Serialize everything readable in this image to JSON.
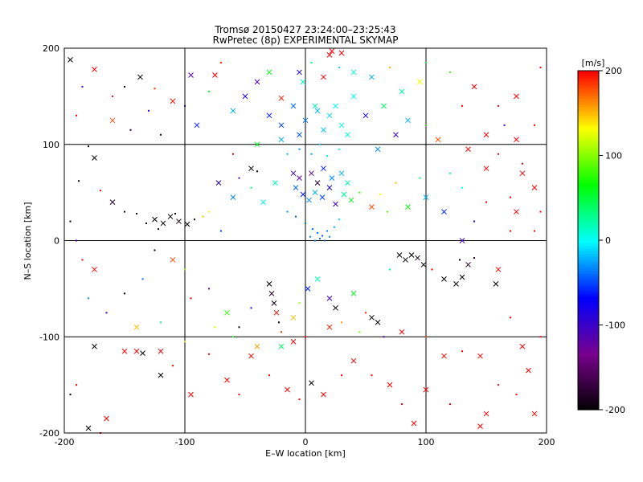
{
  "chart_data": {
    "type": "scatter",
    "title": "Tromsø 20150427 23:24:00–23:25:43",
    "subtitle": "RwPretec (8p) EXPERIMENTAL SKYMAP",
    "xlabel": "E–W location [km]",
    "ylabel": "N–S location [km]",
    "xlim": [
      -200,
      200
    ],
    "ylim": [
      -200,
      200
    ],
    "xticks": [
      -200,
      -100,
      0,
      100,
      200
    ],
    "yticks": [
      -200,
      -100,
      0,
      100,
      200
    ],
    "grid": true,
    "colorbar": {
      "unit_label": "[m/s]",
      "min": -200,
      "max": 200,
      "ticks": [
        -200,
        -100,
        0,
        100,
        200
      ],
      "colormap": "rainbow: black-purple-blue-cyan-green-yellow-red"
    },
    "markers": {
      "large": "x",
      "small": "dot"
    },
    "points": [
      [
        -195,
        188,
        -210,
        1
      ],
      [
        -175,
        178,
        200,
        1
      ],
      [
        -137,
        170,
        -220,
        1
      ],
      [
        -125,
        158,
        190,
        0
      ],
      [
        -110,
        145,
        195,
        1
      ],
      [
        -160,
        125,
        180,
        1
      ],
      [
        -145,
        115,
        -180,
        0
      ],
      [
        -130,
        135,
        -100,
        0
      ],
      [
        -180,
        98,
        -200,
        0
      ],
      [
        -175,
        86,
        -210,
        1
      ],
      [
        -188,
        62,
        -200,
        0
      ],
      [
        -170,
        52,
        200,
        0
      ],
      [
        -160,
        40,
        -180,
        1
      ],
      [
        -125,
        22,
        -220,
        1
      ],
      [
        -118,
        18,
        -210,
        1
      ],
      [
        -112,
        25,
        -200,
        1
      ],
      [
        -105,
        20,
        -190,
        1
      ],
      [
        -98,
        17,
        -210,
        1
      ],
      [
        -92,
        22,
        -200,
        0
      ],
      [
        -132,
        18,
        -210,
        0
      ],
      [
        -140,
        28,
        -180,
        0
      ],
      [
        -150,
        30,
        -190,
        0
      ],
      [
        -122,
        12,
        -200,
        0
      ],
      [
        -108,
        28,
        -220,
        0
      ],
      [
        -85,
        25,
        150,
        0
      ],
      [
        -80,
        30,
        130,
        0
      ],
      [
        -70,
        10,
        -50,
        0
      ],
      [
        -60,
        45,
        -30,
        1
      ],
      [
        -72,
        60,
        -90,
        1
      ],
      [
        -55,
        65,
        -120,
        0
      ],
      [
        -45,
        75,
        -210,
        1
      ],
      [
        -40,
        72,
        -200,
        0
      ],
      [
        -90,
        120,
        -60,
        1
      ],
      [
        -100,
        140,
        -80,
        0
      ],
      [
        -80,
        155,
        60,
        0
      ],
      [
        -60,
        135,
        -20,
        1
      ],
      [
        -50,
        150,
        -90,
        1
      ],
      [
        -40,
        165,
        -110,
        1
      ],
      [
        -30,
        175,
        60,
        1
      ],
      [
        -20,
        148,
        190,
        1
      ],
      [
        -95,
        172,
        -120,
        1
      ],
      [
        -75,
        172,
        200,
        1
      ],
      [
        -120,
        110,
        -180,
        0
      ],
      [
        -70,
        185,
        190,
        0
      ],
      [
        -30,
        130,
        -60,
        1
      ],
      [
        -20,
        120,
        -50,
        1
      ],
      [
        -10,
        140,
        -40,
        1
      ],
      [
        -5,
        110,
        -45,
        1
      ],
      [
        0,
        125,
        -35,
        1
      ],
      [
        10,
        135,
        -20,
        1
      ],
      [
        15,
        115,
        -15,
        1
      ],
      [
        20,
        130,
        -10,
        1
      ],
      [
        25,
        140,
        0,
        1
      ],
      [
        30,
        120,
        5,
        1
      ],
      [
        35,
        110,
        10,
        1
      ],
      [
        40,
        150,
        0,
        1
      ],
      [
        -15,
        90,
        -20,
        0
      ],
      [
        -5,
        95,
        -30,
        0
      ],
      [
        5,
        90,
        -25,
        0
      ],
      [
        12,
        100,
        -15,
        0
      ],
      [
        18,
        88,
        -5,
        0
      ],
      [
        28,
        95,
        10,
        0
      ],
      [
        8,
        140,
        20,
        1
      ],
      [
        -2,
        165,
        20,
        1
      ],
      [
        5,
        185,
        40,
        0
      ],
      [
        -5,
        175,
        -80,
        1
      ],
      [
        15,
        170,
        200,
        1
      ],
      [
        20,
        193,
        200,
        1
      ],
      [
        22,
        197,
        200,
        1
      ],
      [
        28,
        180,
        -10,
        0
      ],
      [
        30,
        195,
        200,
        1
      ],
      [
        40,
        175,
        10,
        1
      ],
      [
        55,
        170,
        -20,
        1
      ],
      [
        70,
        180,
        150,
        0
      ],
      [
        80,
        155,
        20,
        1
      ],
      [
        95,
        165,
        130,
        1
      ],
      [
        100,
        185,
        50,
        0
      ],
      [
        120,
        175,
        80,
        0
      ],
      [
        140,
        160,
        200,
        1
      ],
      [
        160,
        140,
        200,
        0
      ],
      [
        175,
        105,
        200,
        1
      ],
      [
        180,
        80,
        200,
        0
      ],
      [
        190,
        55,
        200,
        1
      ],
      [
        195,
        30,
        200,
        0
      ],
      [
        170,
        45,
        200,
        0
      ],
      [
        150,
        75,
        200,
        1
      ],
      [
        160,
        90,
        200,
        0
      ],
      [
        135,
        95,
        200,
        1
      ],
      [
        -8,
        55,
        -40,
        1
      ],
      [
        -2,
        48,
        -60,
        1
      ],
      [
        3,
        42,
        -30,
        1
      ],
      [
        8,
        50,
        -20,
        1
      ],
      [
        14,
        45,
        -50,
        1
      ],
      [
        20,
        55,
        -80,
        1
      ],
      [
        25,
        38,
        -100,
        1
      ],
      [
        32,
        48,
        30,
        1
      ],
      [
        38,
        42,
        60,
        1
      ],
      [
        45,
        50,
        80,
        0
      ],
      [
        -15,
        30,
        -30,
        0
      ],
      [
        -8,
        25,
        -45,
        0
      ],
      [
        0,
        18,
        -35,
        0
      ],
      [
        6,
        12,
        -40,
        0
      ],
      [
        10,
        8,
        -35,
        0
      ],
      [
        14,
        5,
        -45,
        0
      ],
      [
        18,
        10,
        -30,
        0
      ],
      [
        12,
        2,
        -40,
        0
      ],
      [
        8,
        0,
        -35,
        0
      ],
      [
        4,
        4,
        -30,
        0
      ],
      [
        16,
        0,
        -40,
        0
      ],
      [
        20,
        4,
        -30,
        0
      ],
      [
        24,
        14,
        -20,
        0
      ],
      [
        28,
        22,
        -10,
        0
      ],
      [
        -25,
        60,
        20,
        1
      ],
      [
        -35,
        40,
        10,
        1
      ],
      [
        -45,
        55,
        40,
        0
      ],
      [
        55,
        35,
        180,
        1
      ],
      [
        62,
        48,
        130,
        0
      ],
      [
        68,
        30,
        90,
        0
      ],
      [
        75,
        60,
        150,
        0
      ],
      [
        85,
        35,
        70,
        1
      ],
      [
        95,
        65,
        40,
        0
      ],
      [
        100,
        45,
        -20,
        1
      ],
      [
        120,
        70,
        30,
        0
      ],
      [
        115,
        30,
        -60,
        1
      ],
      [
        130,
        55,
        0,
        0
      ],
      [
        140,
        20,
        -70,
        0
      ],
      [
        130,
        0,
        -100,
        1
      ],
      [
        -125,
        -10,
        -200,
        0
      ],
      [
        -110,
        -20,
        180,
        1
      ],
      [
        -100,
        -30,
        100,
        0
      ],
      [
        -135,
        -40,
        -40,
        0
      ],
      [
        -150,
        -55,
        -200,
        0
      ],
      [
        -175,
        -30,
        200,
        1
      ],
      [
        -180,
        -60,
        -30,
        0
      ],
      [
        -165,
        -75,
        -100,
        0
      ],
      [
        -140,
        -90,
        150,
        1
      ],
      [
        -120,
        -85,
        30,
        0
      ],
      [
        -95,
        -60,
        200,
        0
      ],
      [
        -80,
        -50,
        -120,
        0
      ],
      [
        -65,
        -75,
        80,
        1
      ],
      [
        -55,
        -90,
        -200,
        0
      ],
      [
        -45,
        -70,
        -80,
        0
      ],
      [
        -30,
        -45,
        -200,
        1
      ],
      [
        -28,
        -55,
        -180,
        1
      ],
      [
        -26,
        -65,
        -190,
        1
      ],
      [
        -24,
        -75,
        200,
        1
      ],
      [
        -22,
        -85,
        -200,
        0
      ],
      [
        -20,
        -95,
        190,
        0
      ],
      [
        -10,
        -80,
        150,
        1
      ],
      [
        -5,
        -65,
        100,
        0
      ],
      [
        2,
        -50,
        -60,
        1
      ],
      [
        10,
        -40,
        20,
        1
      ],
      [
        20,
        -60,
        -100,
        1
      ],
      [
        25,
        -70,
        -200,
        1
      ],
      [
        30,
        -85,
        160,
        0
      ],
      [
        40,
        -55,
        60,
        1
      ],
      [
        50,
        -75,
        190,
        0
      ],
      [
        60,
        -85,
        -200,
        1
      ],
      [
        70,
        -30,
        20,
        0
      ],
      [
        78,
        -15,
        -210,
        1
      ],
      [
        83,
        -20,
        -200,
        1
      ],
      [
        88,
        -15,
        -220,
        1
      ],
      [
        93,
        -18,
        -190,
        1
      ],
      [
        98,
        -25,
        -200,
        1
      ],
      [
        105,
        -30,
        200,
        0
      ],
      [
        115,
        -40,
        -200,
        1
      ],
      [
        125,
        -45,
        -210,
        1
      ],
      [
        130,
        -38,
        -200,
        1
      ],
      [
        135,
        -25,
        -180,
        1
      ],
      [
        128,
        -20,
        -200,
        0
      ],
      [
        140,
        -18,
        -190,
        0
      ],
      [
        158,
        -45,
        -200,
        1
      ],
      [
        160,
        -30,
        200,
        1
      ],
      [
        170,
        -80,
        200,
        0
      ],
      [
        180,
        -110,
        200,
        1
      ],
      [
        185,
        -135,
        200,
        1
      ],
      [
        175,
        -160,
        200,
        0
      ],
      [
        150,
        -180,
        200,
        1
      ],
      [
        145,
        -193,
        200,
        1
      ],
      [
        120,
        -170,
        200,
        0
      ],
      [
        100,
        -155,
        200,
        1
      ],
      [
        90,
        -190,
        200,
        1
      ],
      [
        80,
        -170,
        200,
        0
      ],
      [
        70,
        -150,
        200,
        1
      ],
      [
        55,
        -140,
        200,
        0
      ],
      [
        40,
        -125,
        200,
        1
      ],
      [
        30,
        -140,
        200,
        0
      ],
      [
        15,
        -160,
        200,
        1
      ],
      [
        5,
        -148,
        -210,
        1
      ],
      [
        -5,
        -165,
        200,
        0
      ],
      [
        -15,
        -155,
        200,
        1
      ],
      [
        -30,
        -140,
        200,
        0
      ],
      [
        -45,
        -120,
        200,
        1
      ],
      [
        -55,
        -160,
        200,
        0
      ],
      [
        -65,
        -145,
        200,
        1
      ],
      [
        -80,
        -118,
        200,
        0
      ],
      [
        -95,
        -160,
        200,
        1
      ],
      [
        -110,
        -130,
        200,
        0
      ],
      [
        -120,
        -115,
        200,
        1
      ],
      [
        -140,
        -115,
        200,
        1
      ],
      [
        -135,
        -117,
        -220,
        1
      ],
      [
        -150,
        -115,
        200,
        1
      ],
      [
        -175,
        -110,
        -200,
        1
      ],
      [
        -190,
        -150,
        200,
        0
      ],
      [
        -180,
        -195,
        -210,
        1
      ],
      [
        -170,
        -200,
        200,
        0
      ],
      [
        -165,
        -185,
        200,
        1
      ],
      [
        -195,
        -160,
        -200,
        0
      ],
      [
        -120,
        -140,
        -200,
        1
      ],
      [
        -100,
        -105,
        130,
        0
      ],
      [
        -75,
        -90,
        120,
        0
      ],
      [
        -60,
        -100,
        60,
        0
      ],
      [
        -40,
        -110,
        160,
        1
      ],
      [
        -20,
        -110,
        40,
        1
      ],
      [
        -10,
        -105,
        200,
        1
      ],
      [
        0,
        -100,
        200,
        0
      ],
      [
        20,
        -90,
        190,
        1
      ],
      [
        45,
        -95,
        100,
        0
      ],
      [
        55,
        -80,
        -200,
        1
      ],
      [
        65,
        -100,
        -100,
        0
      ],
      [
        80,
        -95,
        200,
        1
      ],
      [
        100,
        -100,
        180,
        0
      ],
      [
        115,
        -120,
        200,
        1
      ],
      [
        130,
        -115,
        200,
        0
      ],
      [
        145,
        -120,
        200,
        1
      ],
      [
        160,
        -150,
        200,
        0
      ],
      [
        190,
        -180,
        200,
        1
      ],
      [
        195,
        -100,
        200,
        0
      ],
      [
        -190,
        130,
        200,
        0
      ],
      [
        -185,
        160,
        -100,
        0
      ],
      [
        -160,
        150,
        200,
        0
      ],
      [
        -150,
        160,
        -200,
        0
      ],
      [
        -195,
        20,
        -200,
        0
      ],
      [
        -190,
        0,
        -100,
        0
      ],
      [
        -185,
        -20,
        200,
        0
      ],
      [
        -60,
        90,
        200,
        0
      ],
      [
        -40,
        100,
        60,
        1
      ],
      [
        -20,
        105,
        -20,
        1
      ],
      [
        60,
        95,
        -30,
        1
      ],
      [
        75,
        110,
        -100,
        1
      ],
      [
        85,
        125,
        -20,
        1
      ],
      [
        65,
        140,
        40,
        1
      ],
      [
        50,
        130,
        -80,
        1
      ],
      [
        100,
        120,
        80,
        0
      ],
      [
        110,
        105,
        180,
        1
      ],
      [
        130,
        140,
        200,
        0
      ],
      [
        150,
        110,
        200,
        1
      ],
      [
        165,
        120,
        -100,
        0
      ],
      [
        175,
        150,
        200,
        1
      ],
      [
        195,
        180,
        200,
        0
      ],
      [
        190,
        120,
        200,
        0
      ],
      [
        180,
        70,
        200,
        1
      ],
      [
        175,
        30,
        200,
        1
      ],
      [
        190,
        10,
        200,
        0
      ],
      [
        170,
        10,
        200,
        0
      ],
      [
        150,
        40,
        200,
        0
      ],
      [
        -10,
        70,
        -100,
        1
      ],
      [
        -5,
        65,
        -120,
        1
      ],
      [
        5,
        70,
        -140,
        1
      ],
      [
        10,
        60,
        -180,
        1
      ],
      [
        15,
        75,
        -60,
        1
      ],
      [
        22,
        65,
        -30,
        1
      ],
      [
        30,
        70,
        -20,
        1
      ],
      [
        35,
        60,
        20,
        1
      ]
    ]
  }
}
